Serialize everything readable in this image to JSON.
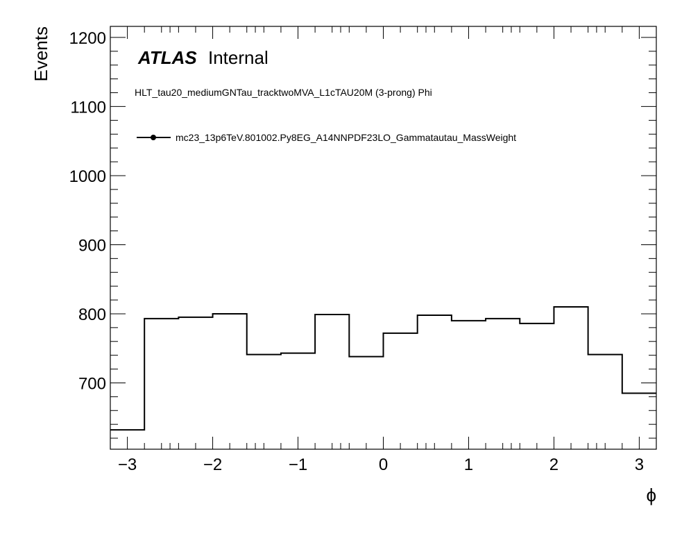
{
  "chart_data": {
    "type": "step",
    "title": "",
    "label_atlas": "ATLAS",
    "label_status": "Internal",
    "subtitle": "HLT_tau20_mediumGNTau_tracktwoMVA_L1cTAU20M (3-prong) Phi",
    "xlabel": "ϕ",
    "ylabel": "Events",
    "xlim": [
      -3.2,
      3.2
    ],
    "ylim": [
      604,
      1216
    ],
    "x_ticks": [
      -3,
      -2,
      -1,
      0,
      1,
      2,
      3
    ],
    "x_tick_labels": [
      "−3",
      "−2",
      "−1",
      "0",
      "1",
      "2",
      "3"
    ],
    "y_ticks": [
      700,
      800,
      900,
      1000,
      1100,
      1200
    ],
    "y_tick_labels": [
      "700",
      "800",
      "900",
      "1000",
      "1100",
      "1200"
    ],
    "bin_edges": [
      -3.2,
      -2.8,
      -2.4,
      -2.0,
      -1.6,
      -1.2,
      -0.8,
      -0.4,
      0.0,
      0.4,
      0.8,
      1.2,
      1.6,
      2.0,
      2.4,
      2.8,
      3.2
    ],
    "series": [
      {
        "name": "mc23_13p6TeV.801002.Py8EG_A14NNPDF23LO_Gammatautau_MassWeight",
        "values": [
          632,
          793,
          795,
          800,
          741,
          743,
          799,
          738,
          772,
          798,
          790,
          793,
          786,
          810,
          741,
          685
        ],
        "color": "#000000"
      }
    ],
    "grid": false,
    "legend_position": "top-left"
  }
}
